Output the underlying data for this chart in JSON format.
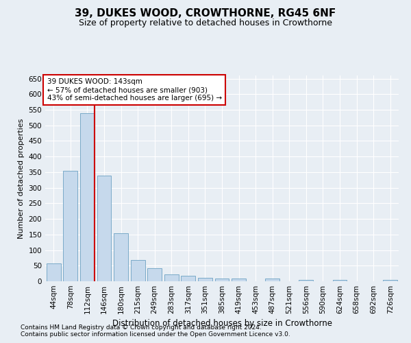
{
  "title": "39, DUKES WOOD, CROWTHORNE, RG45 6NF",
  "subtitle": "Size of property relative to detached houses in Crowthorne",
  "xlabel": "Distribution of detached houses by size in Crowthorne",
  "ylabel": "Number of detached properties",
  "categories": [
    "44sqm",
    "78sqm",
    "112sqm",
    "146sqm",
    "180sqm",
    "215sqm",
    "249sqm",
    "283sqm",
    "317sqm",
    "351sqm",
    "385sqm",
    "419sqm",
    "453sqm",
    "487sqm",
    "521sqm",
    "556sqm",
    "590sqm",
    "624sqm",
    "658sqm",
    "692sqm",
    "726sqm"
  ],
  "values": [
    58,
    355,
    538,
    338,
    155,
    68,
    42,
    23,
    18,
    11,
    9,
    9,
    0,
    8,
    0,
    4,
    0,
    4,
    0,
    0,
    4
  ],
  "bar_color": "#c6d9ec",
  "bar_edge_color": "#7aaac8",
  "vline_index": 2,
  "vline_color": "#cc0000",
  "annotation_text": "39 DUKES WOOD: 143sqm\n← 57% of detached houses are smaller (903)\n43% of semi-detached houses are larger (695) →",
  "annotation_box_facecolor": "white",
  "annotation_box_edgecolor": "#cc0000",
  "ylim": [
    0,
    660
  ],
  "yticks": [
    0,
    50,
    100,
    150,
    200,
    250,
    300,
    350,
    400,
    450,
    500,
    550,
    600,
    650
  ],
  "footnote1": "Contains HM Land Registry data © Crown copyright and database right 2024.",
  "footnote2": "Contains public sector information licensed under the Open Government Licence v3.0.",
  "bg_color": "#e8eef4",
  "grid_color": "#ffffff",
  "title_fontsize": 11,
  "subtitle_fontsize": 9,
  "xlabel_fontsize": 8.5,
  "ylabel_fontsize": 8,
  "tick_fontsize": 7.5,
  "annotation_fontsize": 7.5,
  "footnote_fontsize": 6.5
}
